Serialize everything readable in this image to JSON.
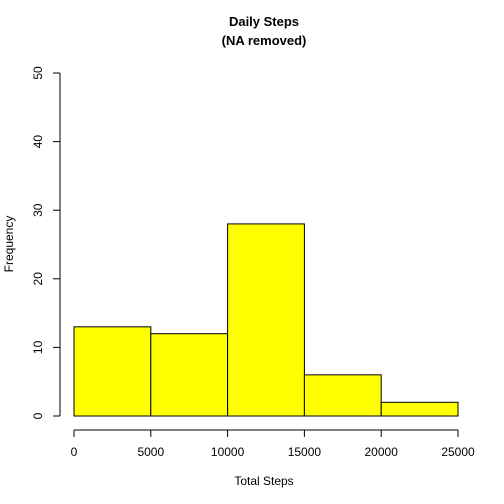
{
  "chart_data": {
    "type": "bar",
    "title": "Daily Steps",
    "subtitle": "(NA removed)",
    "xlabel": "Total Steps",
    "ylabel": "Frequency",
    "bins": [
      {
        "start": 0,
        "end": 5000,
        "value": 13
      },
      {
        "start": 5000,
        "end": 10000,
        "value": 12
      },
      {
        "start": 10000,
        "end": 15000,
        "value": 28
      },
      {
        "start": 15000,
        "end": 20000,
        "value": 6
      },
      {
        "start": 20000,
        "end": 25000,
        "value": 2
      }
    ],
    "xlim": [
      0,
      25000
    ],
    "ylim": [
      0,
      50
    ],
    "xticks": [
      "0",
      "5000",
      "10000",
      "15000",
      "20000",
      "25000"
    ],
    "yticks": [
      "0",
      "10",
      "20",
      "30",
      "40",
      "50"
    ],
    "bar_color": "#ffff00",
    "grid": false
  }
}
